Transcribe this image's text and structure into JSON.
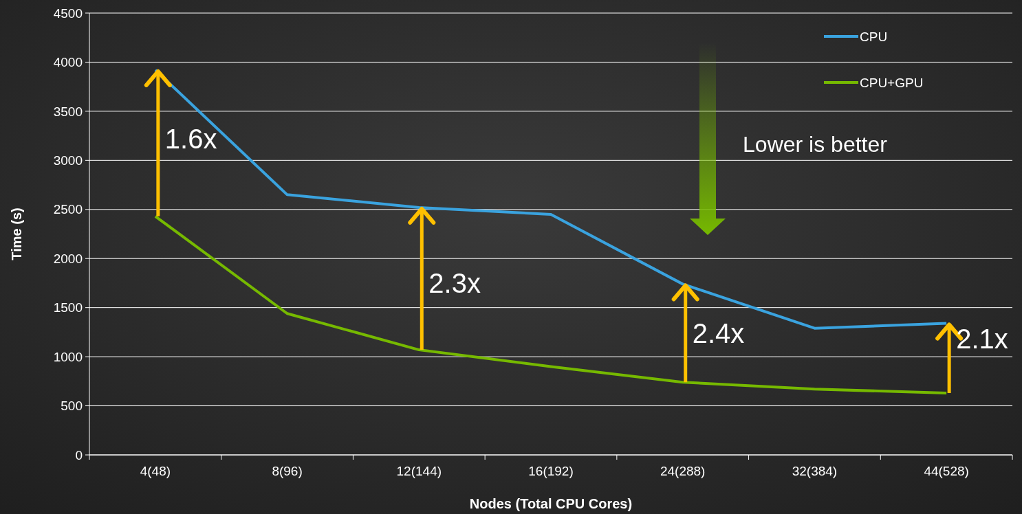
{
  "chart_data": {
    "type": "line",
    "xlabel": "Nodes (Total CPU Cores)",
    "ylabel": "Time (s)",
    "categories": [
      "4(48)",
      "8(96)",
      "12(144)",
      "16(192)",
      "24(288)",
      "32(384)",
      "44(528)"
    ],
    "series": [
      {
        "name": "CPU",
        "color": "#3aa3df",
        "values": [
          3920,
          2650,
          2520,
          2450,
          1740,
          1290,
          1340
        ]
      },
      {
        "name": "CPU+GPU",
        "color": "#76b900",
        "values": [
          2430,
          1440,
          1070,
          900,
          740,
          670,
          630
        ]
      }
    ],
    "ylim": [
      0,
      4500
    ],
    "yticks": [
      0,
      500,
      1000,
      1500,
      2000,
      2500,
      3000,
      3500,
      4000,
      4500
    ],
    "grid": "y",
    "legend": "top right",
    "marker": "none",
    "line_style": "solid",
    "annotations": [
      {
        "text": "1.6x",
        "x": "4(48)",
        "y": 3920
      },
      {
        "text": "2.3x",
        "x": "12(144)",
        "y": 2520
      },
      {
        "text": "2.4x",
        "x": "24(288)",
        "y": 1740
      },
      {
        "text": "2.1x",
        "x": "44(528)",
        "y": 1340
      },
      "Lower is better"
    ]
  }
}
